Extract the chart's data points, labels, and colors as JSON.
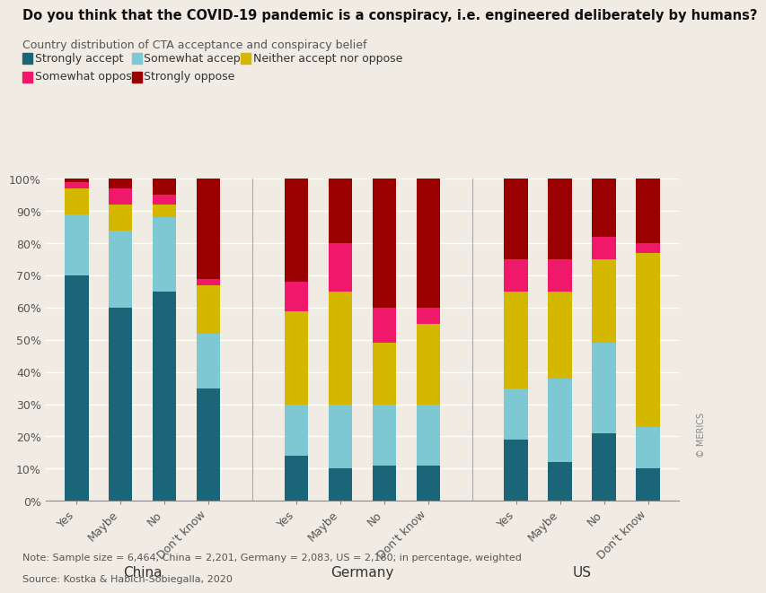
{
  "title": "Do you think that the COVID-19 pandemic is a conspiracy, i.e. engineered deliberately by humans?",
  "subtitle": "Country distribution of CTA acceptance and conspiracy belief",
  "note": "Note: Sample size = 6,464, China = 2,201, Germany = 2,083, US = 2,180; in percentage, weighted",
  "source": "Source: Kostka & Habich-Sobiegalla, 2020",
  "country_labels": [
    "China",
    "Germany",
    "US"
  ],
  "bar_labels": [
    "Yes",
    "Maybe",
    "No",
    "Don't know",
    "Yes",
    "Maybe",
    "No",
    "Don't know",
    "Yes",
    "Maybe",
    "No",
    "Don't know"
  ],
  "strongly_accept": [
    70,
    60,
    65,
    35,
    14,
    10,
    11,
    11,
    19,
    12,
    21,
    10
  ],
  "somewhat_accept": [
    19,
    24,
    23,
    17,
    16,
    20,
    19,
    19,
    16,
    26,
    28,
    13
  ],
  "neither": [
    8,
    8,
    4,
    15,
    29,
    35,
    19,
    25,
    30,
    27,
    26,
    54
  ],
  "somewhat_oppose": [
    2,
    5,
    3,
    2,
    9,
    15,
    11,
    5,
    10,
    10,
    7,
    3
  ],
  "strongly_oppose": [
    1,
    3,
    5,
    31,
    32,
    20,
    40,
    40,
    25,
    25,
    18,
    20
  ],
  "colors": {
    "strongly_accept": "#1a6678",
    "somewhat_accept": "#7ec8d4",
    "neither": "#d4b800",
    "somewhat_oppose": "#f0186a",
    "strongly_oppose": "#9b0000"
  },
  "background_color": "#f0ebe3",
  "bar_width": 0.55
}
